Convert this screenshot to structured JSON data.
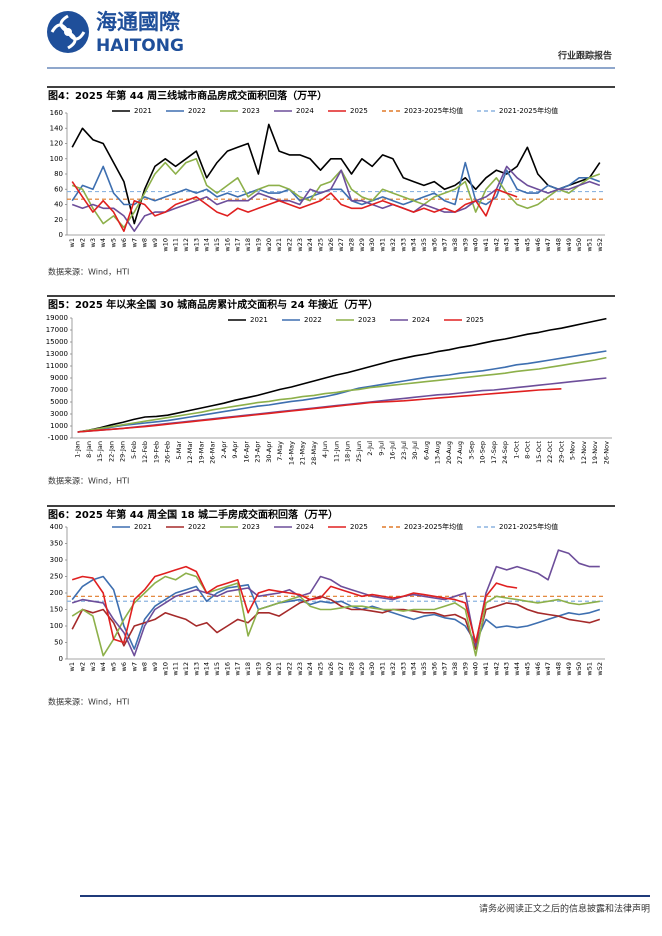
{
  "header": {
    "logo_cn": "海通國際",
    "logo_en": "HAITONG",
    "report_type": "行业跟踪报告"
  },
  "footer": {
    "disclaimer": "请务必阅读正文之后的信息披露和法律声明"
  },
  "chart_data": [
    {
      "type": "line",
      "title": "图4：2025 年第 44 周三线城市商品房成交面积回落（万平）",
      "source": "数据来源：Wind，HTI",
      "categories": [
        "w1",
        "w2",
        "w3",
        "w4",
        "w5",
        "w6",
        "w7",
        "w8",
        "w9",
        "w10",
        "w11",
        "w12",
        "w13",
        "w14",
        "w15",
        "w16",
        "w17",
        "w18",
        "w19",
        "w20",
        "w21",
        "w22",
        "w23",
        "w24",
        "w25",
        "w26",
        "w27",
        "w28",
        "w29",
        "w30",
        "w31",
        "w32",
        "w33",
        "w34",
        "w35",
        "w36",
        "w37",
        "w38",
        "w39",
        "w40",
        "w41",
        "w42",
        "w43",
        "w44",
        "w45",
        "w46",
        "w47",
        "w48",
        "w49",
        "w50",
        "w51",
        "w52"
      ],
      "ylim": [
        0,
        160
      ],
      "yticks": [
        0,
        20,
        40,
        60,
        80,
        100,
        120,
        140,
        160
      ],
      "series": [
        {
          "name": "2021",
          "color": "#000000",
          "values": [
            115,
            140,
            125,
            120,
            95,
            70,
            15,
            60,
            90,
            100,
            90,
            100,
            110,
            75,
            95,
            110,
            115,
            120,
            80,
            145,
            110,
            105,
            105,
            100,
            85,
            100,
            100,
            80,
            100,
            90,
            105,
            100,
            75,
            70,
            65,
            70,
            60,
            65,
            75,
            60,
            75,
            85,
            80,
            90,
            115,
            80,
            65,
            60,
            65,
            70,
            75,
            95
          ]
        },
        {
          "name": "2022",
          "color": "#3e6fb0",
          "values": [
            45,
            65,
            60,
            90,
            55,
            40,
            40,
            50,
            45,
            50,
            55,
            60,
            55,
            60,
            50,
            55,
            50,
            55,
            60,
            55,
            55,
            60,
            45,
            50,
            55,
            60,
            60,
            45,
            40,
            45,
            50,
            45,
            40,
            45,
            50,
            55,
            45,
            40,
            95,
            45,
            40,
            50,
            85,
            60,
            55,
            55,
            65,
            60,
            65,
            75,
            75,
            70
          ]
        },
        {
          "name": "2023",
          "color": "#8db04a",
          "values": [
            65,
            60,
            35,
            15,
            25,
            10,
            30,
            55,
            80,
            95,
            80,
            95,
            100,
            65,
            55,
            65,
            75,
            50,
            60,
            65,
            65,
            60,
            50,
            45,
            65,
            70,
            85,
            60,
            50,
            45,
            60,
            55,
            50,
            45,
            40,
            50,
            55,
            60,
            70,
            30,
            60,
            75,
            55,
            40,
            35,
            40,
            50,
            60,
            55,
            65,
            75,
            80
          ]
        },
        {
          "name": "2024",
          "color": "#6d4e9a",
          "values": [
            40,
            35,
            40,
            35,
            35,
            25,
            5,
            25,
            30,
            30,
            35,
            40,
            45,
            50,
            40,
            45,
            45,
            45,
            55,
            50,
            45,
            45,
            40,
            60,
            55,
            60,
            85,
            45,
            45,
            40,
            35,
            40,
            35,
            30,
            40,
            35,
            30,
            30,
            35,
            45,
            50,
            60,
            90,
            75,
            65,
            60,
            55,
            60,
            60,
            65,
            70,
            65
          ]
        },
        {
          "name": "2025",
          "color": "#e02020",
          "values": [
            70,
            50,
            30,
            45,
            30,
            5,
            45,
            40,
            25,
            30,
            40,
            45,
            50,
            40,
            30,
            25,
            35,
            30,
            35,
            40,
            45,
            40,
            35,
            40,
            45,
            55,
            40,
            35,
            35,
            40,
            45,
            40,
            35,
            30,
            35,
            30,
            35,
            30,
            40,
            45,
            25,
            60,
            55,
            50,
            null,
            null,
            null,
            null,
            null,
            null,
            null,
            null
          ]
        }
      ],
      "reference_lines": [
        {
          "name": "2023-2025年均值",
          "color": "#e07a28",
          "value": 47
        },
        {
          "name": "2021-2025年均值",
          "color": "#8cb4e0",
          "value": 57
        }
      ]
    },
    {
      "type": "line",
      "title": "图5：2025 年以来全国 30 城商品房累计成交面积与 24 年接近（万平）",
      "source": "数据来源：Wind，HTI",
      "categories": [
        "1-Jan",
        "8-Jan",
        "15-Jan",
        "22-Jan",
        "29-Jan",
        "5-Feb",
        "12-Feb",
        "19-Feb",
        "26-Feb",
        "5-Mar",
        "12-Mar",
        "19-Mar",
        "26-Mar",
        "2-Apr",
        "9-Apr",
        "16-Apr",
        "23-Apr",
        "30-Apr",
        "7-May",
        "14-May",
        "21-May",
        "28-May",
        "4-Jun",
        "11-Jun",
        "18-Jun",
        "25-Jun",
        "2-Jul",
        "9-Jul",
        "16-Jul",
        "23-Jul",
        "30-Jul",
        "6-Aug",
        "13-Aug",
        "20-Aug",
        "27-Aug",
        "3-Sep",
        "10-Sep",
        "17-Sep",
        "24-Sep",
        "1-Oct",
        "8-Oct",
        "15-Oct",
        "22-Oct",
        "29-Oct",
        "5-Nov",
        "12-Nov",
        "19-Nov",
        "26-Nov"
      ],
      "ylim": [
        -1000,
        19000
      ],
      "yticks": [
        -1000,
        1000,
        3000,
        5000,
        7000,
        9000,
        11000,
        13000,
        15000,
        17000,
        19000
      ],
      "series": [
        {
          "name": "2021",
          "color": "#000000",
          "values": [
            0,
            300,
            700,
            1200,
            1600,
            2100,
            2500,
            2600,
            2800,
            3200,
            3600,
            4000,
            4400,
            4800,
            5300,
            5700,
            6100,
            6600,
            7100,
            7500,
            8000,
            8500,
            9000,
            9500,
            9900,
            10400,
            10900,
            11400,
            11900,
            12300,
            12700,
            13000,
            13400,
            13700,
            14100,
            14400,
            14800,
            15200,
            15500,
            15900,
            16300,
            16600,
            17000,
            17300,
            17700,
            18100,
            18500,
            18900
          ]
        },
        {
          "name": "2022",
          "color": "#3e6fb0",
          "values": [
            0,
            200,
            500,
            800,
            1100,
            1300,
            1500,
            1700,
            1900,
            2200,
            2500,
            2800,
            3100,
            3400,
            3700,
            4000,
            4300,
            4500,
            4800,
            5100,
            5300,
            5600,
            5900,
            6300,
            6800,
            7300,
            7600,
            7900,
            8200,
            8500,
            8800,
            9100,
            9300,
            9500,
            9800,
            10000,
            10200,
            10500,
            10800,
            11200,
            11400,
            11700,
            12000,
            12300,
            12600,
            12900,
            13200,
            13500
          ]
        },
        {
          "name": "2023",
          "color": "#8db04a",
          "values": [
            0,
            300,
            600,
            900,
            1200,
            1500,
            1800,
            2100,
            2400,
            2700,
            3000,
            3300,
            3700,
            4000,
            4300,
            4600,
            4900,
            5100,
            5400,
            5600,
            5900,
            6100,
            6400,
            6600,
            6900,
            7100,
            7400,
            7600,
            7800,
            8000,
            8200,
            8400,
            8600,
            8800,
            9000,
            9200,
            9400,
            9600,
            9800,
            10100,
            10300,
            10500,
            10800,
            11100,
            11400,
            11700,
            12000,
            12400
          ]
        },
        {
          "name": "2024",
          "color": "#6d4e9a",
          "values": [
            0,
            150,
            300,
            450,
            600,
            800,
            1000,
            1200,
            1400,
            1600,
            1800,
            2000,
            2200,
            2400,
            2600,
            2800,
            3000,
            3200,
            3400,
            3600,
            3800,
            4000,
            4200,
            4400,
            4600,
            4800,
            5000,
            5200,
            5400,
            5600,
            5800,
            6000,
            6200,
            6300,
            6500,
            6700,
            6900,
            7000,
            7200,
            7400,
            7600,
            7800,
            8000,
            8200,
            8400,
            8600,
            8800,
            9000
          ]
        },
        {
          "name": "2025",
          "color": "#e02020",
          "values": [
            0,
            150,
            300,
            450,
            600,
            750,
            900,
            1100,
            1300,
            1500,
            1700,
            1900,
            2100,
            2300,
            2500,
            2700,
            2900,
            3100,
            3300,
            3500,
            3700,
            3900,
            4100,
            4300,
            4500,
            4700,
            4900,
            5000,
            5100,
            5200,
            5350,
            5500,
            5650,
            5800,
            5950,
            6100,
            6250,
            6400,
            6550,
            6700,
            6850,
            7000,
            7100,
            7200,
            null,
            null,
            null,
            null
          ]
        }
      ]
    },
    {
      "type": "line",
      "title": "图6：2025 年第 44 周全国 18 城二手房成交面积回落（万平）",
      "source": "数据来源：Wind，HTI",
      "categories": [
        "w1",
        "w2",
        "w3",
        "w4",
        "w5",
        "w6",
        "w7",
        "w8",
        "w9",
        "w10",
        "w11",
        "w12",
        "w13",
        "w14",
        "w15",
        "w16",
        "w17",
        "w18",
        "w19",
        "w20",
        "w21",
        "w22",
        "w23",
        "w24",
        "w25",
        "w26",
        "w27",
        "w28",
        "w29",
        "w30",
        "w31",
        "w32",
        "w33",
        "w34",
        "w35",
        "w36",
        "w37",
        "w38",
        "w39",
        "w40",
        "w41",
        "w42",
        "w43",
        "w44",
        "w45",
        "w46",
        "w47",
        "w48",
        "w49",
        "w50",
        "w51",
        "w52"
      ],
      "ylim": [
        0,
        400
      ],
      "yticks": [
        0,
        50,
        100,
        150,
        200,
        250,
        300,
        350,
        400
      ],
      "series": [
        {
          "name": "2021",
          "color": "#3e6fb0",
          "values": [
            180,
            220,
            240,
            250,
            210,
            100,
            30,
            120,
            160,
            180,
            200,
            210,
            220,
            175,
            200,
            215,
            220,
            225,
            150,
            160,
            170,
            175,
            180,
            165,
            175,
            170,
            175,
            160,
            150,
            160,
            150,
            140,
            130,
            120,
            130,
            135,
            125,
            120,
            100,
            50,
            120,
            95,
            100,
            95,
            100,
            110,
            120,
            130,
            140,
            135,
            140,
            150
          ]
        },
        {
          "name": "2022",
          "color": "#a52a2a",
          "values": [
            90,
            150,
            140,
            150,
            110,
            40,
            100,
            110,
            120,
            140,
            130,
            120,
            100,
            110,
            80,
            100,
            120,
            110,
            140,
            140,
            130,
            150,
            170,
            180,
            190,
            180,
            160,
            150,
            150,
            145,
            140,
            150,
            150,
            145,
            140,
            140,
            130,
            135,
            120,
            30,
            150,
            160,
            170,
            165,
            150,
            140,
            135,
            130,
            120,
            115,
            110,
            120
          ]
        },
        {
          "name": "2023",
          "color": "#8db04a",
          "values": [
            130,
            150,
            130,
            10,
            60,
            120,
            170,
            200,
            230,
            250,
            240,
            260,
            250,
            200,
            210,
            220,
            230,
            70,
            150,
            160,
            170,
            180,
            190,
            160,
            150,
            150,
            155,
            160,
            160,
            155,
            150,
            150,
            145,
            150,
            150,
            150,
            160,
            170,
            150,
            10,
            170,
            190,
            185,
            180,
            175,
            170,
            175,
            180,
            170,
            165,
            170,
            175
          ]
        },
        {
          "name": "2024",
          "color": "#6d4e9a",
          "values": [
            170,
            180,
            175,
            170,
            120,
            80,
            10,
            100,
            150,
            170,
            190,
            200,
            210,
            200,
            190,
            205,
            210,
            215,
            190,
            195,
            200,
            210,
            190,
            200,
            250,
            240,
            220,
            210,
            200,
            190,
            185,
            180,
            190,
            195,
            190,
            185,
            180,
            190,
            200,
            40,
            200,
            280,
            270,
            280,
            270,
            260,
            240,
            330,
            320,
            290,
            280,
            280
          ]
        },
        {
          "name": "2025",
          "color": "#e02020",
          "values": [
            240,
            250,
            245,
            200,
            60,
            50,
            180,
            210,
            250,
            260,
            270,
            280,
            265,
            200,
            220,
            230,
            240,
            140,
            200,
            210,
            205,
            200,
            195,
            180,
            185,
            220,
            210,
            200,
            190,
            195,
            190,
            185,
            190,
            200,
            195,
            190,
            185,
            180,
            170,
            50,
            190,
            230,
            220,
            215,
            null,
            null,
            null,
            null,
            null,
            null,
            null,
            null
          ]
        }
      ],
      "reference_lines": [
        {
          "name": "2023-2025年均值",
          "color": "#e07a28",
          "value": 190
        },
        {
          "name": "2021-2025年均值",
          "color": "#8cb4e0",
          "value": 175
        }
      ]
    }
  ]
}
